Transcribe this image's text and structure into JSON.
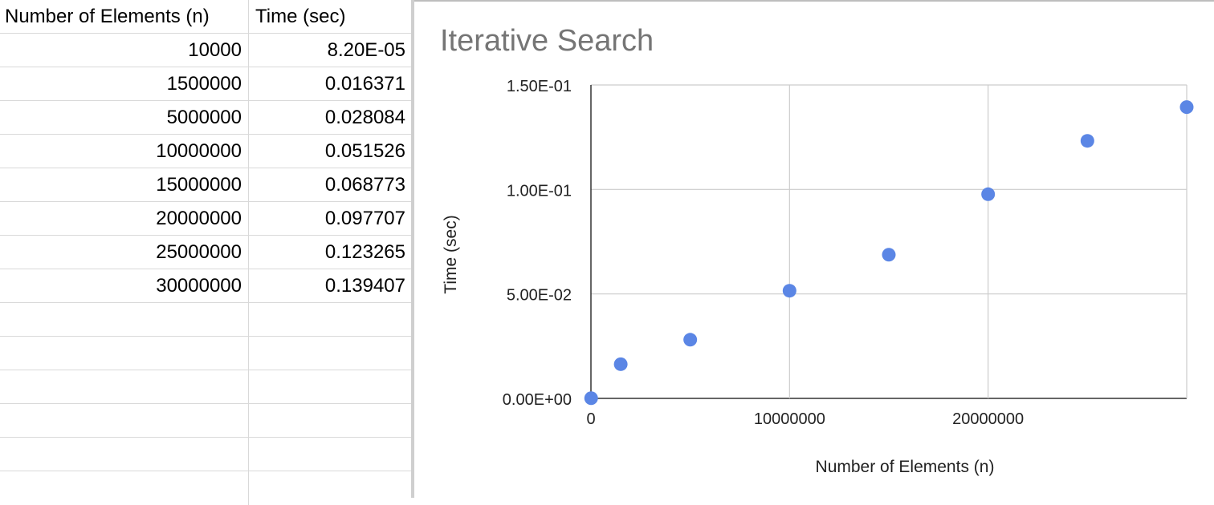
{
  "sheet": {
    "headers": [
      "Number of Elements (n)",
      "Time (sec)"
    ],
    "rows": [
      [
        "10000",
        "8.20E-05"
      ],
      [
        "1500000",
        "0.016371"
      ],
      [
        "5000000",
        "0.028084"
      ],
      [
        "10000000",
        "0.051526"
      ],
      [
        "15000000",
        "0.068773"
      ],
      [
        "20000000",
        "0.097707"
      ],
      [
        "25000000",
        "0.123265"
      ],
      [
        "30000000",
        "0.139407"
      ]
    ]
  },
  "chart_data": {
    "type": "scatter",
    "title": "Iterative Search",
    "xlabel": "Number of Elements (n)",
    "ylabel": "Time (sec)",
    "x": [
      10000,
      1500000,
      5000000,
      10000000,
      15000000,
      20000000,
      25000000,
      30000000
    ],
    "y": [
      8.2e-05,
      0.016371,
      0.028084,
      0.051526,
      0.068773,
      0.097707,
      0.123265,
      0.139407
    ],
    "xlim": [
      0,
      30000000
    ],
    "ylim": [
      0,
      0.15
    ],
    "xticks": [
      0,
      10000000,
      20000000
    ],
    "xtick_labels": [
      "0",
      "10000000",
      "20000000"
    ],
    "yticks": [
      0,
      0.05,
      0.1,
      0.15
    ],
    "ytick_labels": [
      "0.00E+00",
      "5.00E-02",
      "1.00E-01",
      "1.50E-01"
    ],
    "grid": true,
    "legend": "none",
    "point_color": "#5b86e5"
  }
}
